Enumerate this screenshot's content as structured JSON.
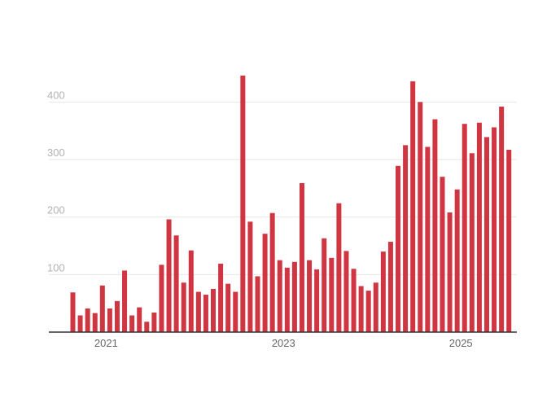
{
  "chart_data": {
    "type": "bar",
    "title": "",
    "xlabel": "",
    "ylabel": "",
    "ylim": [
      0,
      450
    ],
    "y_ticks": [
      100,
      200,
      300,
      400
    ],
    "y_tick_labels": [
      "100",
      "200",
      "300",
      "400"
    ],
    "x_tick_labels": [
      {
        "label": "2021",
        "x": "2021-01"
      },
      {
        "label": "2023",
        "x": "2023-01"
      },
      {
        "label": "2025",
        "x": "2025-01"
      }
    ],
    "grid": true,
    "legend": "none",
    "bar_color": "#d03542",
    "categories": [
      "2020-09",
      "2020-10",
      "2020-11",
      "2020-12",
      "2021-01",
      "2021-02",
      "2021-03",
      "2021-04",
      "2021-05",
      "2021-06",
      "2021-07",
      "2021-08",
      "2021-09",
      "2021-10",
      "2021-11",
      "2021-12",
      "2022-01",
      "2022-02",
      "2022-03",
      "2022-04",
      "2022-05",
      "2022-06",
      "2022-07",
      "2022-08",
      "2022-09",
      "2022-10",
      "2022-11",
      "2022-12",
      "2023-01",
      "2023-02",
      "2023-03",
      "2023-04",
      "2023-05",
      "2023-06",
      "2023-07",
      "2023-08",
      "2023-09",
      "2023-10",
      "2023-11",
      "2023-12",
      "2024-01",
      "2024-02",
      "2024-03",
      "2024-04",
      "2024-05",
      "2024-06",
      "2024-07",
      "2024-08",
      "2024-09",
      "2024-10",
      "2024-11",
      "2024-12",
      "2025-01",
      "2025-02",
      "2025-03",
      "2025-04",
      "2025-05",
      "2025-06",
      "2025-07",
      "2025-08"
    ],
    "values": [
      69,
      29,
      41,
      33,
      81,
      41,
      54,
      107,
      29,
      43,
      18,
      34,
      117,
      196,
      168,
      86,
      142,
      70,
      65,
      75,
      119,
      84,
      70,
      446,
      192,
      97,
      171,
      207,
      125,
      112,
      122,
      259,
      125,
      109,
      163,
      129,
      224,
      141,
      110,
      80,
      72,
      86,
      140,
      157,
      289,
      325,
      436,
      400,
      322,
      370,
      270,
      208,
      248,
      362,
      311,
      364,
      339,
      356,
      392,
      317
    ]
  }
}
